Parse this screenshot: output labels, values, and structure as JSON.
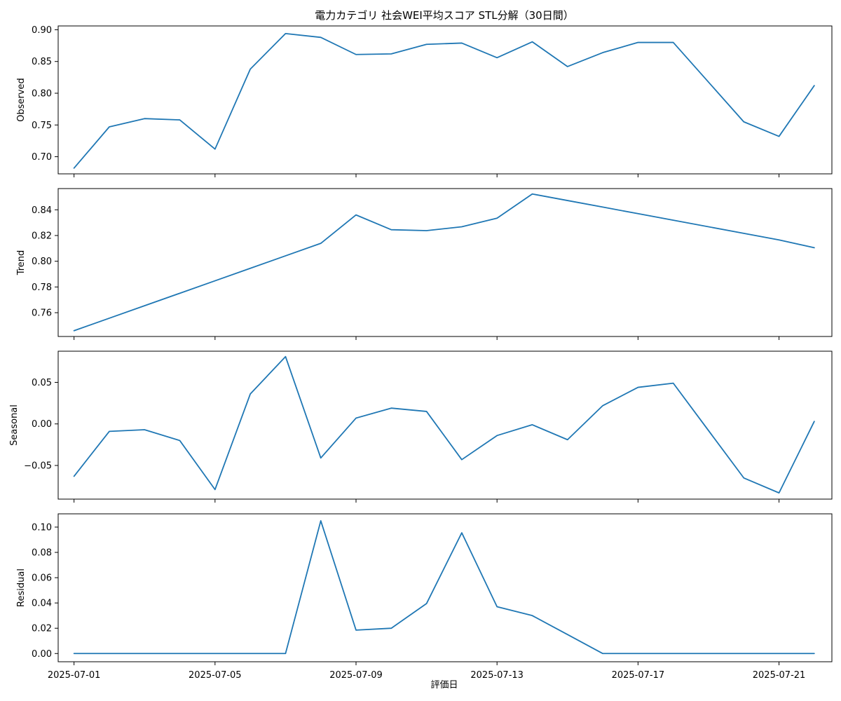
{
  "title": "電力カテゴリ 社会WEI平均スコア STL分解（30日間）",
  "chart_data": {
    "type": "line",
    "title": "電力カテゴリ 社会WEI平均スコア STL分解（30日間）",
    "xlabel": "評価日",
    "line_color": "#1f77b4",
    "grid": false,
    "x_tick_labels": [
      "2025-07-01",
      "2025-07-05",
      "2025-07-09",
      "2025-07-13",
      "2025-07-17",
      "2025-07-21"
    ],
    "x_tick_days": [
      1,
      5,
      9,
      13,
      17,
      21
    ],
    "x_days": [
      1,
      2,
      3,
      4,
      5,
      6,
      7,
      8,
      9,
      10,
      11,
      12,
      13,
      14,
      15,
      16,
      17,
      18,
      20,
      21,
      22
    ],
    "x_dates": [
      "2025-07-01",
      "2025-07-02",
      "2025-07-03",
      "2025-07-04",
      "2025-07-05",
      "2025-07-06",
      "2025-07-07",
      "2025-07-08",
      "2025-07-09",
      "2025-07-10",
      "2025-07-11",
      "2025-07-12",
      "2025-07-13",
      "2025-07-14",
      "2025-07-15",
      "2025-07-16",
      "2025-07-17",
      "2025-07-18",
      "2025-07-20",
      "2025-07-21",
      "2025-07-22"
    ],
    "xlim": [
      0.55,
      22.5
    ],
    "panels": [
      {
        "name": "Observed",
        "ylabel": "Observed",
        "ylim": [
          0.673,
          0.906
        ],
        "y_ticks": [
          0.7,
          0.75,
          0.8,
          0.85,
          0.9
        ],
        "y_tick_labels": [
          "0.70",
          "0.75",
          "0.80",
          "0.85",
          "0.90"
        ],
        "values": [
          0.682,
          0.747,
          0.76,
          0.758,
          0.712,
          0.838,
          0.894,
          0.888,
          0.861,
          0.862,
          0.877,
          0.879,
          0.856,
          0.881,
          0.842,
          0.864,
          0.88,
          0.88,
          0.755,
          0.732,
          0.812
        ]
      },
      {
        "name": "Trend",
        "ylabel": "Trend",
        "ylim": [
          0.7415,
          0.8565
        ],
        "y_ticks": [
          0.76,
          0.78,
          0.8,
          0.82,
          0.84
        ],
        "y_tick_labels": [
          "0.76",
          "0.78",
          "0.80",
          "0.82",
          "0.84"
        ],
        "values": [
          0.746,
          0.7557,
          0.7654,
          0.7751,
          0.7848,
          0.7945,
          0.8042,
          0.8139,
          0.836,
          0.8245,
          0.8238,
          0.8268,
          0.8335,
          0.8523,
          0.8472,
          0.8421,
          0.837,
          0.8319,
          0.8217,
          0.8166,
          0.8105
        ]
      },
      {
        "name": "Seasonal",
        "ylabel": "Seasonal",
        "ylim": [
          -0.0905,
          0.0875
        ],
        "y_ticks": [
          -0.05,
          0.0,
          0.05
        ],
        "y_tick_labels": [
          "−0.05",
          "0.00",
          "0.05"
        ],
        "values": [
          -0.063,
          -0.009,
          -0.007,
          -0.02,
          -0.079,
          0.036,
          0.081,
          -0.041,
          0.007,
          0.019,
          0.015,
          -0.043,
          -0.014,
          -0.001,
          -0.019,
          0.022,
          0.044,
          0.049,
          -0.065,
          -0.083,
          0.003
        ]
      },
      {
        "name": "Residual",
        "ylabel": "Residual",
        "ylim": [
          -0.0065,
          0.1105
        ],
        "y_ticks": [
          0.0,
          0.02,
          0.04,
          0.06,
          0.08,
          0.1
        ],
        "y_tick_labels": [
          "0.00",
          "0.02",
          "0.04",
          "0.06",
          "0.08",
          "0.10"
        ],
        "values": [
          0.0,
          0.0,
          0.0,
          0.0,
          0.0,
          0.0,
          0.0,
          0.105,
          0.0185,
          0.02,
          0.0395,
          0.0955,
          0.037,
          0.03,
          0.015,
          0.0,
          0.0,
          0.0,
          0.0,
          0.0,
          0.0
        ]
      }
    ]
  }
}
